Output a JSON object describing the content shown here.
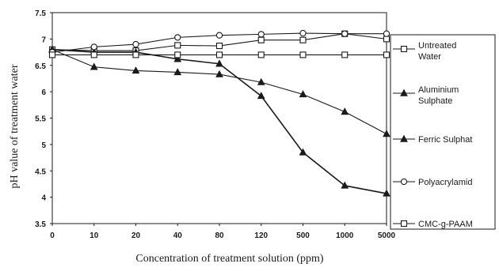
{
  "chart_data": {
    "type": "line",
    "title": "",
    "xlabel": "Concentration of treatment solution (ppm)",
    "ylabel": "pH value of treatment water",
    "categories": [
      "0",
      "10",
      "20",
      "40",
      "80",
      "120",
      "500",
      "1000",
      "5000"
    ],
    "ylim": [
      3.5,
      7.5
    ],
    "yticks": [
      "3.5",
      "4",
      "4.5",
      "5",
      "5.5",
      "6",
      "6.5",
      "7",
      "7.5"
    ],
    "grid": false,
    "legend_position": "right",
    "series": [
      {
        "name": "Untreated Water",
        "marker": "square",
        "values": [
          6.8,
          6.78,
          6.78,
          6.88,
          6.87,
          6.98,
          6.98,
          7.1,
          7.0
        ]
      },
      {
        "name": "Aluminium Sulphate",
        "marker": "triangle",
        "values": [
          6.8,
          6.47,
          6.4,
          6.37,
          6.33,
          6.18,
          5.95,
          5.62,
          5.2
        ]
      },
      {
        "name": "Ferric Sulphat",
        "marker": "triangle",
        "values": [
          6.8,
          6.75,
          6.75,
          6.62,
          6.53,
          5.92,
          4.85,
          4.22,
          4.07
        ]
      },
      {
        "name": "Polyacrylamid",
        "marker": "circle",
        "values": [
          6.75,
          6.85,
          6.9,
          7.03,
          7.07,
          7.09,
          7.11,
          7.1,
          7.1
        ]
      },
      {
        "name": "CMC-g-PAAM",
        "marker": "square",
        "values": [
          6.7,
          6.7,
          6.7,
          6.7,
          6.7,
          6.7,
          6.7,
          6.7,
          6.7
        ]
      }
    ]
  }
}
